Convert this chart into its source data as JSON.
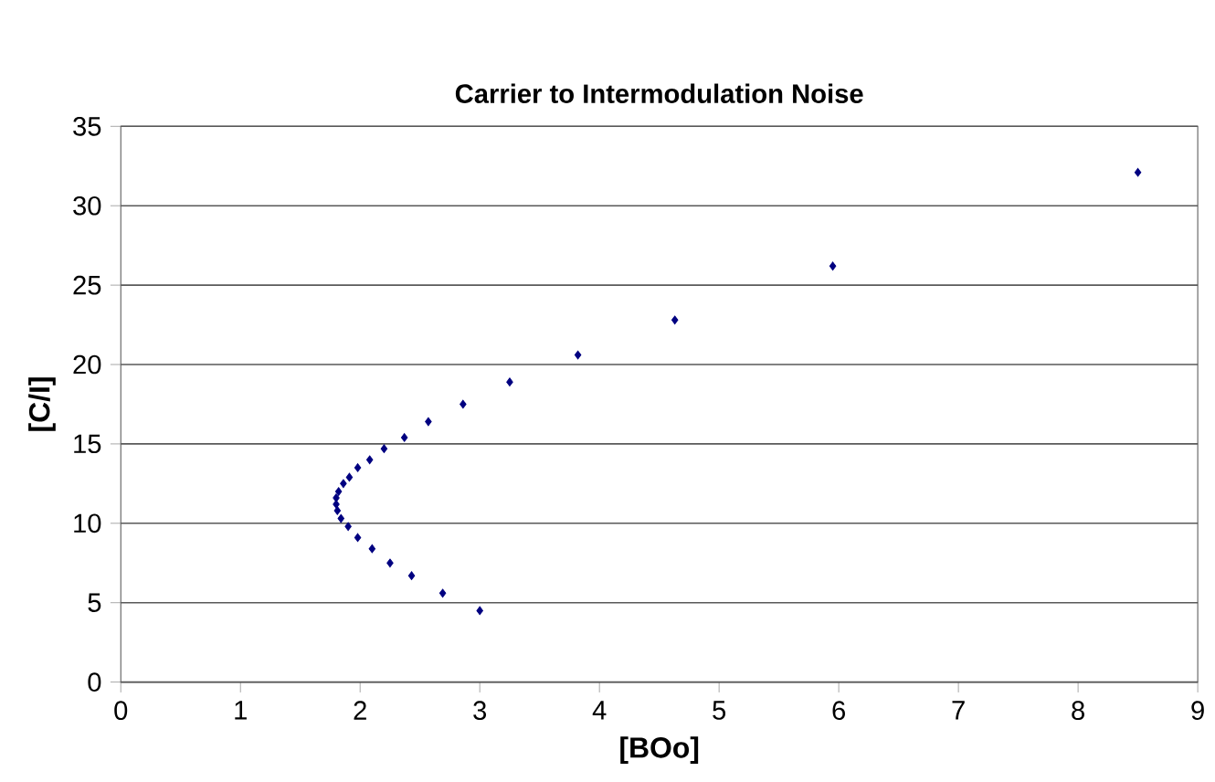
{
  "chart_data": {
    "type": "scatter",
    "title": "Carrier to Intermodulation Noise",
    "xlabel": "[BOo]",
    "ylabel": "[C/I]",
    "x": [
      3.0,
      2.69,
      2.43,
      2.25,
      2.1,
      1.98,
      1.9,
      1.84,
      1.81,
      1.8,
      1.8,
      1.82,
      1.86,
      1.91,
      1.98,
      2.08,
      2.2,
      2.37,
      2.57,
      2.86,
      3.25,
      3.82,
      4.63,
      5.95,
      8.5
    ],
    "values": [
      4.5,
      5.6,
      6.7,
      7.5,
      8.4,
      9.1,
      9.8,
      10.3,
      10.8,
      11.2,
      11.6,
      12.0,
      12.5,
      12.9,
      13.5,
      14.0,
      14.7,
      15.4,
      16.4,
      17.5,
      18.9,
      20.6,
      22.8,
      26.2,
      32.1
    ],
    "color": "#000080",
    "marker": "diamond",
    "grid": "y",
    "xlim": [
      0,
      9
    ],
    "xticks": [
      0,
      1,
      2,
      3,
      4,
      5,
      6,
      7,
      8,
      9
    ],
    "ylim": [
      0,
      35
    ],
    "yticks": [
      0,
      5,
      10,
      15,
      20,
      25,
      30,
      35
    ]
  }
}
